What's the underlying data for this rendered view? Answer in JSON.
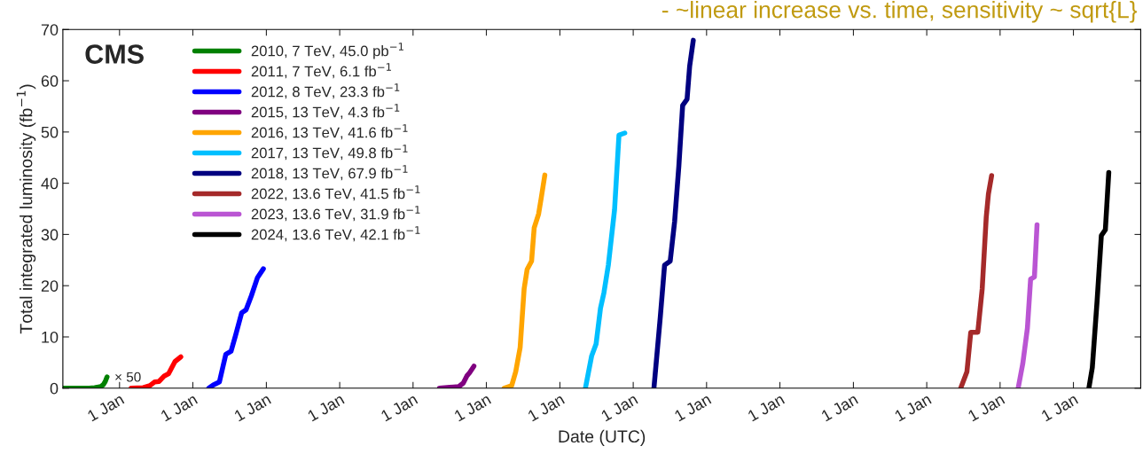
{
  "chart_data": {
    "type": "line",
    "xlabel": "Date (UTC)",
    "ylabel": "Total integrated luminosity (fb$^{−1}$)",
    "xlim": [
      "2010-03-25",
      "2024-12-01"
    ],
    "ylim": [
      0,
      70
    ],
    "yticks": [
      0,
      10,
      20,
      30,
      40,
      50,
      60,
      70
    ],
    "xticks": [
      {
        "value": "2011-01-01",
        "label": "1 Jan"
      },
      {
        "value": "2012-01-01",
        "label": "1 Jan"
      },
      {
        "value": "2013-01-01",
        "label": "1 Jan"
      },
      {
        "value": "2014-01-01",
        "label": "1 Jan"
      },
      {
        "value": "2015-01-01",
        "label": "1 Jan"
      },
      {
        "value": "2016-01-01",
        "label": "1 Jan"
      },
      {
        "value": "2017-01-01",
        "label": "1 Jan"
      },
      {
        "value": "2018-01-01",
        "label": "1 Jan"
      },
      {
        "value": "2019-01-01",
        "label": "1 Jan"
      },
      {
        "value": "2020-01-01",
        "label": "1 Jan"
      },
      {
        "value": "2021-01-01",
        "label": "1 Jan"
      },
      {
        "value": "2022-01-01",
        "label": "1 Jan"
      },
      {
        "value": "2023-01-01",
        "label": "1 Jan"
      },
      {
        "value": "2024-01-01",
        "label": "1 Jan"
      }
    ],
    "grid": false,
    "legend": "top left",
    "line_style": "solid",
    "marker": "none",
    "annotations": [
      "CMS",
      {
        "text": "× 50",
        "x": "2010-10-31",
        "y": 2.2
      },
      "- ~linear increase vs. time, sensitivity ~ sqrt{L}"
    ],
    "series": [
      {
        "name": "2010, 7 TeV, 45.0 pb$^{−1}$",
        "color": "#008000",
        "x": [
          "2010-03-25",
          "2010-08-03",
          "2010-08-30",
          "2010-09-30",
          "2010-10-13",
          "2010-10-22",
          "2010-10-31"
        ],
        "values": [
          0,
          0,
          0.1,
          0.3,
          0.7,
          1.3,
          2.2
        ]
      },
      {
        "name": "2011, 7 TeV, 6.1 fb$^{−1}$",
        "color": "#ff0000",
        "x": [
          "2011-02-28",
          "2011-04-29",
          "2011-06-01",
          "2011-06-24",
          "2011-07-16",
          "2011-08-12",
          "2011-09-02",
          "2011-10-04",
          "2011-11-02"
        ],
        "values": [
          0,
          0.1,
          0.5,
          1.2,
          1.3,
          2.4,
          2.8,
          5.2,
          6.1
        ]
      },
      {
        "name": "2012, 8 TeV, 23.3 fb$^{−1}$",
        "color": "#0000ff",
        "x": [
          "2012-03-20",
          "2012-04-11",
          "2012-05-12",
          "2012-06-13",
          "2012-07-09",
          "2012-07-31",
          "2012-08-31",
          "2012-09-22",
          "2012-10-18",
          "2012-11-18",
          "2012-12-17"
        ],
        "values": [
          0,
          0.6,
          1.2,
          6.6,
          7.2,
          10.2,
          14.7,
          15.3,
          18.0,
          21.6,
          23.3
        ]
      },
      {
        "name": "2015, 13 TeV, 4.3 fb$^{−1}$",
        "color": "#800080",
        "x": [
          "2015-05-12",
          "2015-08-17",
          "2015-09-08",
          "2015-09-26",
          "2015-10-09",
          "2015-10-31"
        ],
        "values": [
          0,
          0.3,
          1.0,
          2.4,
          3.0,
          4.3
        ]
      },
      {
        "name": "2016, 13 TeV, 41.6 fb$^{−1}$",
        "color": "#ffa500",
        "x": [
          "2016-03-29",
          "2016-05-06",
          "2016-05-26",
          "2016-06-17",
          "2016-07-07",
          "2016-07-22",
          "2016-08-13",
          "2016-08-26",
          "2016-09-17",
          "2016-09-30",
          "2016-10-18"
        ],
        "values": [
          0,
          0.5,
          3.2,
          7.9,
          19.4,
          23.2,
          24.8,
          31.3,
          34.0,
          37.1,
          41.6
        ]
      },
      {
        "name": "2017, 13 TeV, 49.8 fb$^{−1}$",
        "color": "#00bfff",
        "x": [
          "2017-05-08",
          "2017-06-08",
          "2017-06-30",
          "2017-07-22",
          "2017-08-08",
          "2017-08-30",
          "2017-09-30",
          "2017-10-22",
          "2017-11-20"
        ],
        "values": [
          0,
          6.3,
          8.6,
          15.6,
          18.6,
          24.0,
          34.8,
          49.4,
          49.8
        ]
      },
      {
        "name": "2018, 13 TeV, 67.9 fb$^{−1}$",
        "color": "#000080",
        "x": [
          "2018-04-14",
          "2018-05-16",
          "2018-06-06",
          "2018-07-04",
          "2018-07-26",
          "2018-08-16",
          "2018-09-04",
          "2018-09-26",
          "2018-10-09",
          "2018-10-27"
        ],
        "values": [
          0,
          14.0,
          24.0,
          24.8,
          32.5,
          43.3,
          55.2,
          56.4,
          62.9,
          67.9
        ]
      },
      {
        "name": "2022, 13.6 TeV, 41.5 fb$^{−1}$",
        "color": "#a52a2a",
        "x": [
          "2022-06-19",
          "2022-07-20",
          "2022-08-08",
          "2022-09-12",
          "2022-10-04",
          "2022-10-24",
          "2022-11-04",
          "2022-11-20"
        ],
        "values": [
          0,
          3.2,
          10.9,
          10.9,
          19.4,
          33.3,
          37.9,
          41.5
        ]
      },
      {
        "name": "2023, 13.6 TeV, 31.9 fb$^{−1}$",
        "color": "#ba55d3",
        "x": [
          "2023-04-01",
          "2023-04-24",
          "2023-05-17",
          "2023-06-02",
          "2023-06-21",
          "2023-07-04"
        ],
        "values": [
          0,
          4.8,
          11.7,
          21.3,
          21.7,
          31.9
        ]
      },
      {
        "name": "2024, 13.6 TeV, 42.1 fb$^{−1}$",
        "color": "#000000",
        "x": [
          "2024-03-18",
          "2024-04-04",
          "2024-04-28",
          "2024-05-19",
          "2024-06-08",
          "2024-06-25"
        ],
        "values": [
          0,
          4.0,
          17.1,
          29.8,
          30.9,
          42.1
        ]
      }
    ]
  }
}
